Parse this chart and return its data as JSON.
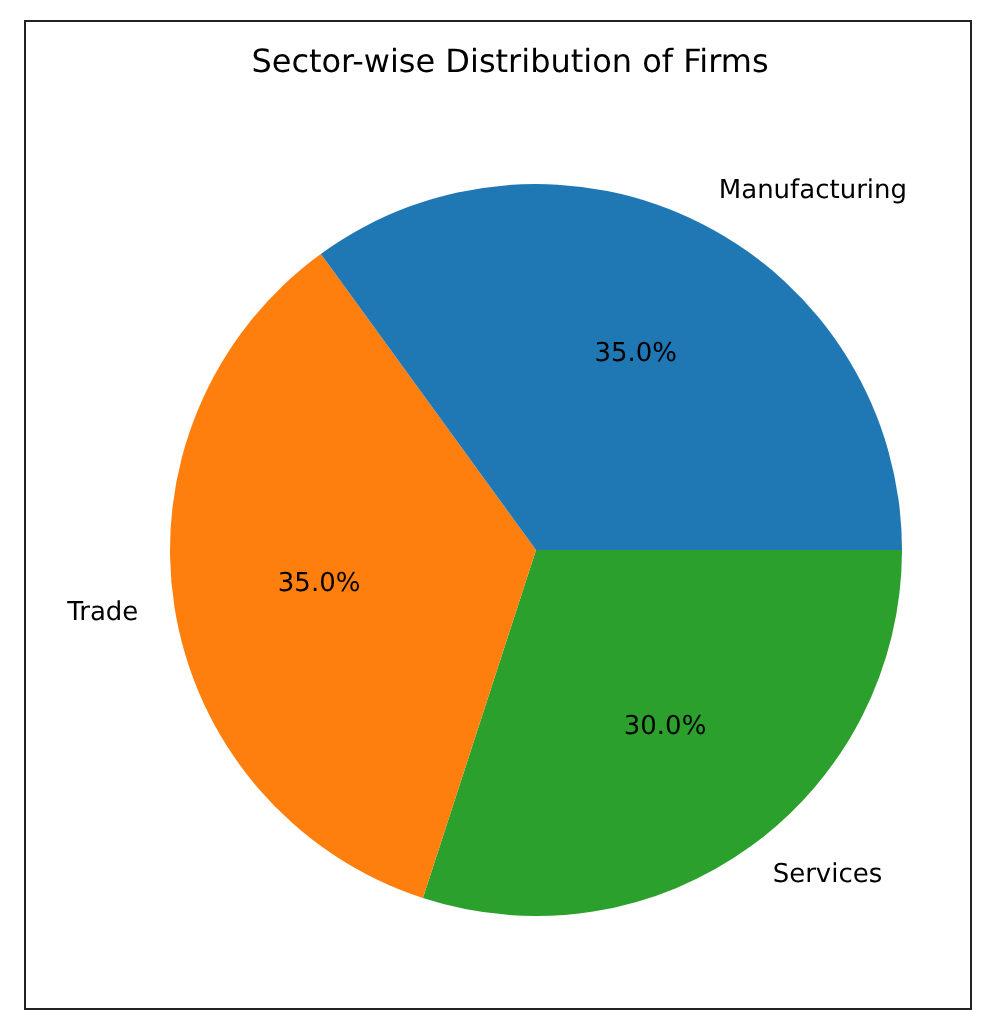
{
  "chart_data": {
    "type": "pie",
    "title": "Sector-wise Distribution of Firms",
    "categories": [
      "Manufacturing",
      "Trade",
      "Services"
    ],
    "values": [
      35,
      35,
      30
    ],
    "colors": [
      "#1f77b4",
      "#ff7f0e",
      "#2ca02c"
    ],
    "value_labels": [
      "35.0%",
      "35.0%",
      "30.0%"
    ]
  }
}
